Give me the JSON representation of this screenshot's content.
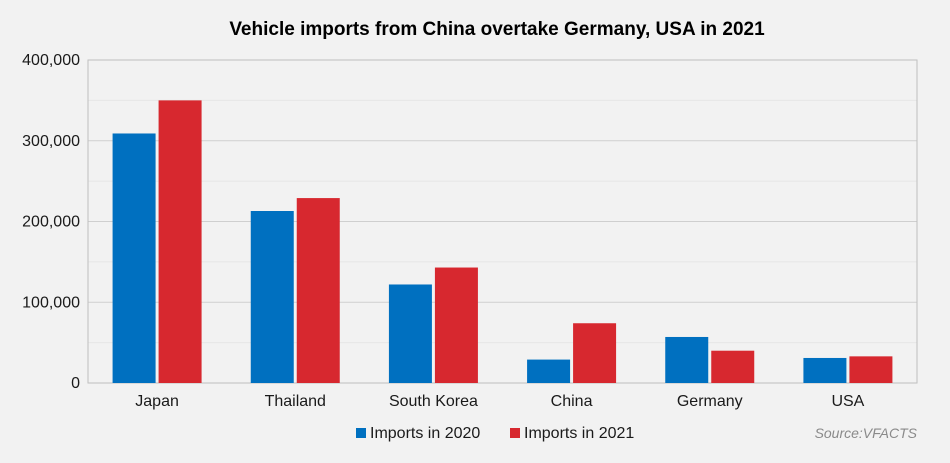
{
  "chart_data": {
    "type": "bar",
    "title": "Vehicle imports from China overtake Germany, USA in 2021",
    "categories": [
      "Japan",
      "Thailand",
      "South Korea",
      "China",
      "Germany",
      "USA"
    ],
    "series": [
      {
        "name": "Imports in 2020",
        "color": "#0070c0",
        "values": [
          309000,
          213000,
          122000,
          29000,
          57000,
          31000
        ]
      },
      {
        "name": "Imports in 2021",
        "color": "#d7282f",
        "values": [
          350000,
          229000,
          143000,
          74000,
          40000,
          33000
        ]
      }
    ],
    "ylim": [
      0,
      400000
    ],
    "yticks": [
      0,
      100000,
      200000,
      300000,
      400000
    ],
    "ytick_labels": [
      "0",
      "100,000",
      "200,000",
      "300,000",
      "400,000"
    ],
    "grid": true,
    "legend_position": "bottom",
    "source": "Source:VFACTS",
    "xlabel": "",
    "ylabel": ""
  }
}
